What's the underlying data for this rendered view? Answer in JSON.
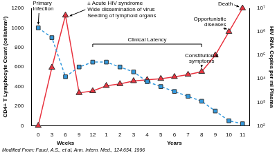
{
  "chart_data": {
    "type": "line",
    "categories": [
      "0",
      "3",
      "6",
      "9",
      "12",
      "1",
      "2",
      "3",
      "4",
      "5",
      "6",
      "7",
      "8",
      "9",
      "10",
      "11"
    ],
    "x_titles": [
      "Weeks",
      "Years"
    ],
    "ylabel": "CD4+ T Lymphocyte Count (cells/mm³)",
    "y2label": "HIV RNA Copies per ml Plasma",
    "series": [
      {
        "color": "#3399dd",
        "marker": "square",
        "line_style": "dashed",
        "values": [
          1000,
          900,
          500,
          600,
          650,
          650,
          600,
          550,
          450,
          400,
          350,
          300,
          250,
          150,
          50,
          20
        ]
      },
      {
        "color": "#e8333f",
        "marker": "triangle",
        "line_style": "solid",
        "axis": "y2",
        "values": [
          100,
          30000,
          5000000,
          2500,
          3000,
          5000,
          6000,
          8000,
          9000,
          10000,
          12000,
          15000,
          20000,
          100000,
          1000000,
          10000000
        ]
      }
    ],
    "ylim": [
      0,
      1200
    ],
    "yticks": [
      0,
      200,
      400,
      600,
      800,
      1000,
      1200
    ],
    "y2lim": [
      100,
      10000000
    ],
    "y2ticks": [
      {
        "value": 100,
        "label": "10²"
      },
      {
        "value": 1000,
        "label": "10³"
      },
      {
        "value": 10000,
        "label": "10⁴"
      },
      {
        "value": 100000,
        "label": "10⁵"
      },
      {
        "value": 1000000,
        "label": "10⁶"
      },
      {
        "value": 10000000,
        "label": "10⁷"
      }
    ],
    "log": "y2",
    "grid": false,
    "annotations": [
      "Primary Infection",
      "± Acute HIV syndrome",
      "Wide dissemination of virus",
      "Seeding of lymphoid organs",
      "Clinical Latency",
      "Constitutional symptoms",
      "Opportunistic diseases",
      "Death"
    ],
    "note": "Modified From: Fauci, A.S., et al, Ann. Intern. Med., 124:654, 1996"
  }
}
